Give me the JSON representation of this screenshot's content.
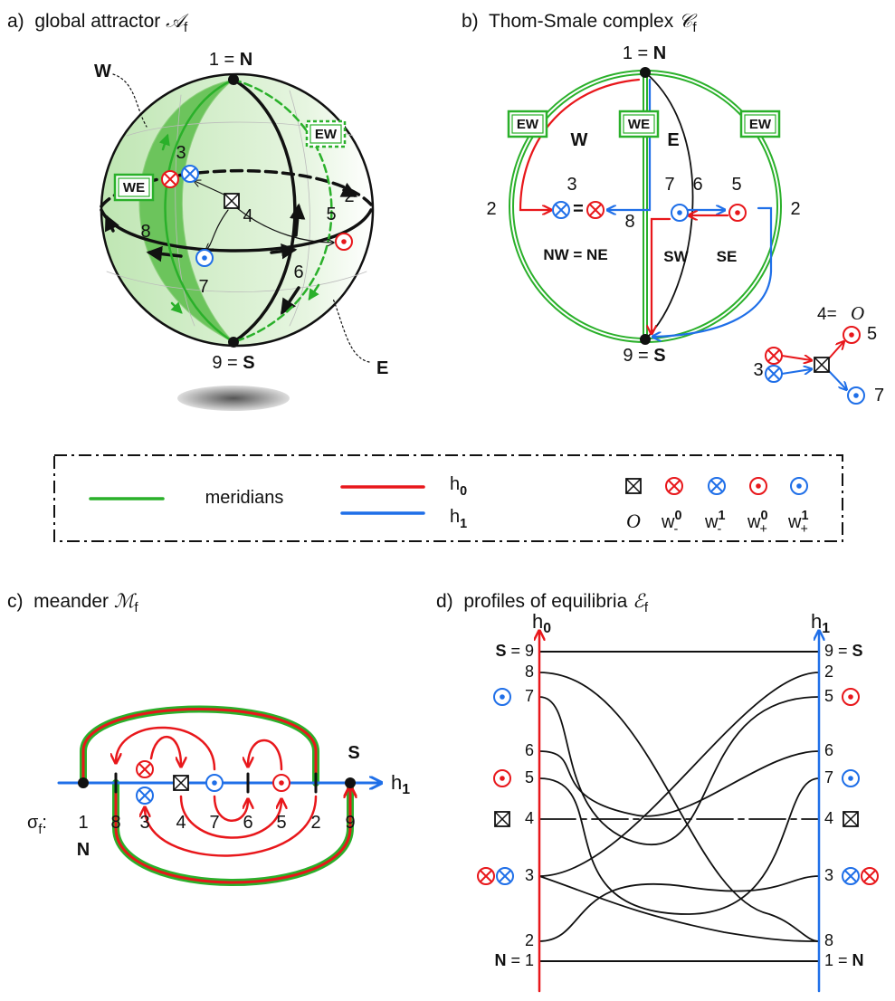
{
  "panel_a": {
    "title": "a)  global attractor ",
    "title_symbol": "𝒜",
    "title_sub": "f",
    "north": {
      "num": "1 = ",
      "pole": "N"
    },
    "south": {
      "num": "9 = ",
      "pole": "S"
    },
    "west": "W",
    "east": "E",
    "box_ew": "EW",
    "box_we": "WE",
    "node_labels": [
      "2",
      "3",
      "4",
      "5",
      "6",
      "7",
      "8"
    ]
  },
  "panel_b": {
    "title": "b)  Thom-Smale complex ",
    "title_symbol": "𝒞",
    "title_sub": "f",
    "north": {
      "num": "1 = ",
      "pole": "N"
    },
    "south": {
      "num": "9 = ",
      "pole": "S"
    },
    "west": "W",
    "east": "E",
    "boxes": [
      "EW",
      "WE",
      "EW"
    ],
    "node_labels": [
      "2",
      "3",
      "8",
      "7",
      "6",
      "5",
      "2"
    ],
    "equals": "=",
    "regions": [
      "NW = NE",
      "SW",
      "SE"
    ],
    "inset": {
      "label": "4=",
      "symbol": "O",
      "labels": [
        "5",
        "3",
        "7"
      ]
    }
  },
  "legend": {
    "meridians": "meridians",
    "h0": {
      "base": "h",
      "sub": "0"
    },
    "h1": {
      "base": "h",
      "sub": "1"
    },
    "origin": "O",
    "w": [
      {
        "base": "w",
        "sup": "0",
        "sub": "-"
      },
      {
        "base": "w",
        "sup": "1",
        "sub": "-"
      },
      {
        "base": "w",
        "sup": "0",
        "sub": "+"
      },
      {
        "base": "w",
        "sup": "1",
        "sub": "+"
      }
    ]
  },
  "panel_c": {
    "title": "c)  meander ",
    "title_symbol": "ℳ",
    "title_sub": "f",
    "axis": {
      "base": "h",
      "sub": "1"
    },
    "sigma": {
      "base": "σ",
      "sub": "f",
      "tail": ":"
    },
    "permutation": [
      "1",
      "8",
      "3",
      "4",
      "7",
      "6",
      "5",
      "2",
      "9"
    ],
    "north": "N",
    "south": "S"
  },
  "panel_d": {
    "title": "d)  profiles of equilibria ",
    "title_symbol": "ℰ",
    "title_sub": "f",
    "left_axis": {
      "base": "h",
      "sub": "0"
    },
    "right_axis": {
      "base": "h",
      "sub": "1"
    },
    "left_top": {
      "pole": "S",
      "num": " = 9"
    },
    "left_labels": [
      "8",
      "7",
      "6",
      "5",
      "4",
      "3",
      "2"
    ],
    "left_bottom": {
      "pole": "N",
      "num": " = 1"
    },
    "right_top": {
      "num": "9 = ",
      "pole": "S"
    },
    "right_labels": [
      "2",
      "5",
      "6",
      "7",
      "4",
      "3",
      "8"
    ],
    "right_bottom": {
      "num": "1 = ",
      "pole": "N"
    }
  }
}
